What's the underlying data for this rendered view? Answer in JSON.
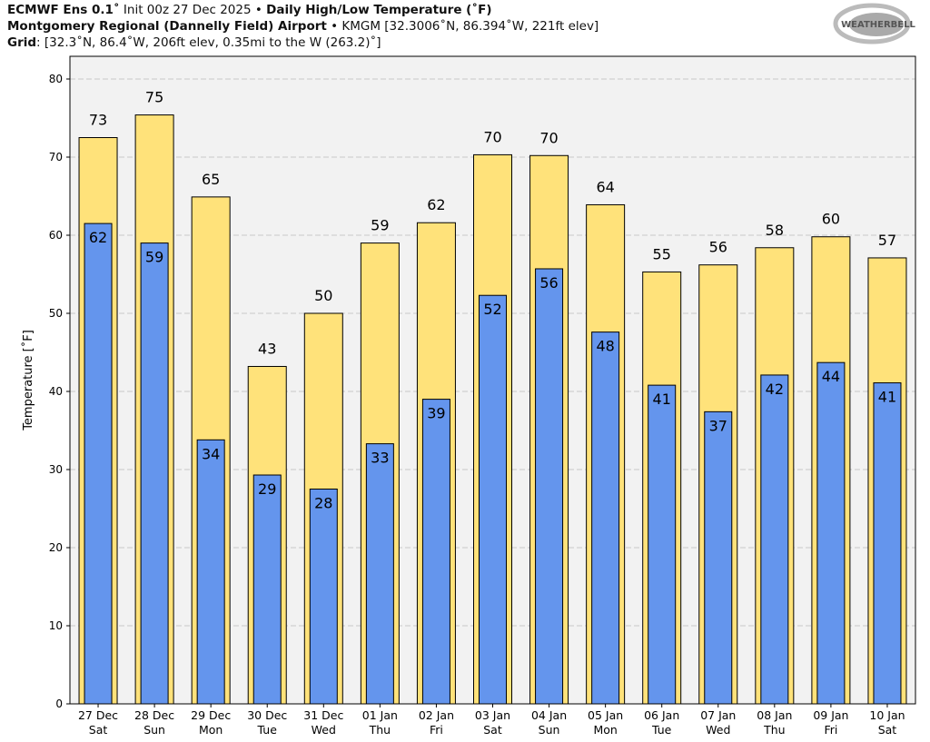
{
  "header": {
    "line1_bold_a": "ECMWF Ens 0.1˚",
    "line1_normal": " Init 00z 27 Dec 2025 • ",
    "line1_bold_b": "Daily High/Low Temperature (˚F)",
    "line2_bold": "Montgomery Regional (Dannelly Field) Airport",
    "line2_normal": " • KMGM [32.3006˚N, 86.394˚W, 221ft elev]",
    "line3_bold": "Grid",
    "line3_normal": ": [32.3˚N, 86.4˚W, 206ft elev, 0.35mi to the W (263.2)˚]"
  },
  "logo": {
    "text": "WeatherBELL"
  },
  "chart_data": {
    "type": "bar",
    "ylabel": "Temperature [˚F]",
    "ylim": [
      0,
      80
    ],
    "yticks": [
      0,
      10,
      20,
      30,
      40,
      50,
      60,
      70,
      80
    ],
    "grid": true,
    "categories": [
      "27 Dec\nSat",
      "28 Dec\nSun",
      "29 Dec\nMon",
      "30 Dec\nTue",
      "31 Dec\nWed",
      "01 Jan\nThu",
      "02 Jan\nFri",
      "03 Jan\nSat",
      "04 Jan\nSun",
      "05 Jan\nMon",
      "06 Jan\nTue",
      "07 Jan\nWed",
      "08 Jan\nThu",
      "09 Jan\nFri",
      "10 Jan\nSat"
    ],
    "series": [
      {
        "key": "high",
        "color": "#FFE27A",
        "values": [
          72.5,
          75.4,
          64.9,
          43.2,
          50.0,
          59.0,
          61.6,
          70.3,
          70.2,
          63.9,
          55.3,
          56.2,
          58.4,
          59.8,
          57.1
        ],
        "labels": [
          "73",
          "75",
          "65",
          "43",
          "50",
          "59",
          "62",
          "70",
          "70",
          "64",
          "55",
          "56",
          "58",
          "60",
          "57"
        ]
      },
      {
        "key": "low",
        "color": "#6495ED",
        "values": [
          61.5,
          59.0,
          33.8,
          29.3,
          27.5,
          33.3,
          39.0,
          52.3,
          55.7,
          47.6,
          40.8,
          37.4,
          42.1,
          43.7,
          41.1
        ],
        "labels": [
          "62",
          "59",
          "34",
          "29",
          "28",
          "33",
          "39",
          "52",
          "56",
          "48",
          "41",
          "37",
          "42",
          "44",
          "41"
        ]
      }
    ]
  }
}
